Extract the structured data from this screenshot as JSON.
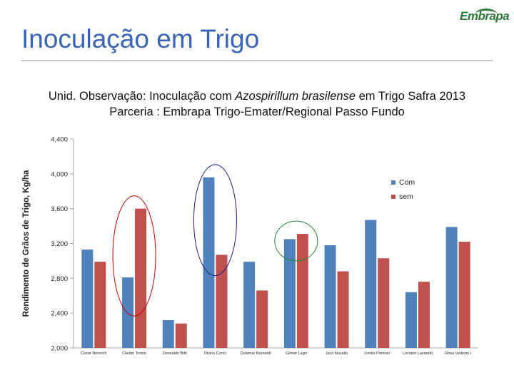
{
  "header": {
    "title": "Inoculação em Trigo",
    "logo_text": "Embrapa"
  },
  "subtitle": {
    "line1_prefix": "Unid. Observação:  Inoculação com ",
    "line1_italic": "Azospirillum brasilense",
    "line1_suffix": " em Trigo Safra 2013",
    "line2": "Parceria : Embrapa Trigo-Emater/Regional Passo Fundo"
  },
  "chart_data": {
    "type": "bar",
    "title": "",
    "xlabel": "",
    "ylabel": "Rendimento de Grãos  de Trigo, Kg/ha",
    "ylim": [
      2000,
      4400
    ],
    "yticks": [
      2000,
      2400,
      2800,
      3200,
      3600,
      4000,
      4400
    ],
    "ytick_labels": [
      "2,000",
      "2,400",
      "2,800",
      "3,200",
      "3,600",
      "4,000",
      "4,400"
    ],
    "grid": false,
    "legend_position": "top-right",
    "categories": [
      "Cezar Nonnich",
      "Cleiton Tortori",
      "Deovaldo Bitti",
      "Divino Conci",
      "Dolamar Bernardi",
      "Gilmar Lago",
      "Jacir Novello",
      "Lindor Portoso",
      "Luciano Lazaretti",
      "Rosa Vedovin i"
    ],
    "series": [
      {
        "name": "Com",
        "color": "#4f81bd",
        "values": [
          3130,
          2810,
          2320,
          3960,
          2990,
          3250,
          3180,
          3470,
          2640,
          3390
        ]
      },
      {
        "name": "sem",
        "color": "#c0504d",
        "values": [
          2990,
          3600,
          2280,
          3070,
          2660,
          3310,
          2880,
          3030,
          2760,
          3220
        ]
      }
    ],
    "annotations": [
      {
        "type": "ellipse",
        "category_index": 1,
        "color": "#cc0000"
      },
      {
        "type": "ellipse",
        "category_index": 3,
        "color": "#1a1a8c"
      },
      {
        "type": "ellipse",
        "category_index": 5,
        "color": "#1f8a3a"
      }
    ]
  }
}
